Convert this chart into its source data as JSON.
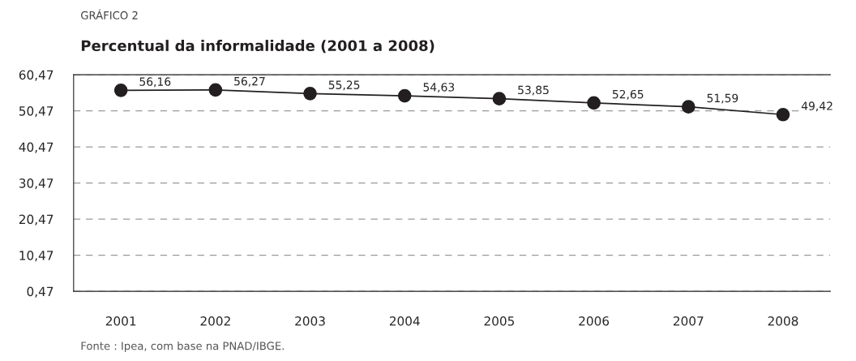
{
  "chart_data": {
    "type": "line",
    "subtitle": "GRÁFICO 2",
    "title": "Percentual da informalidade (2001 a 2008)",
    "categories": [
      "2001",
      "2002",
      "2003",
      "2004",
      "2005",
      "2006",
      "2007",
      "2008"
    ],
    "series": [
      {
        "color": "#231f20",
        "values": [
          56.16,
          56.27,
          55.25,
          54.63,
          53.85,
          52.65,
          51.59,
          49.42
        ],
        "value_labels": [
          "56,16",
          "56,27",
          "55,25",
          "54,63",
          "53,85",
          "52,65",
          "51,59",
          "49,42"
        ]
      }
    ],
    "ylim": [
      0.47,
      60.47
    ],
    "yticks": [
      {
        "value": 0.47,
        "label": "0,47"
      },
      {
        "value": 10.47,
        "label": "10,47"
      },
      {
        "value": 20.47,
        "label": "20,47"
      },
      {
        "value": 30.47,
        "label": "30,47"
      },
      {
        "value": 40.47,
        "label": "40,47"
      },
      {
        "value": 50.47,
        "label": "50,47"
      },
      {
        "value": 60.47,
        "label": "60,47"
      }
    ],
    "grid": "y",
    "marker": "circle",
    "line_style": "solid",
    "annotations": [
      "Fonte : Ipea, com base na PNAD/IBGE."
    ]
  }
}
